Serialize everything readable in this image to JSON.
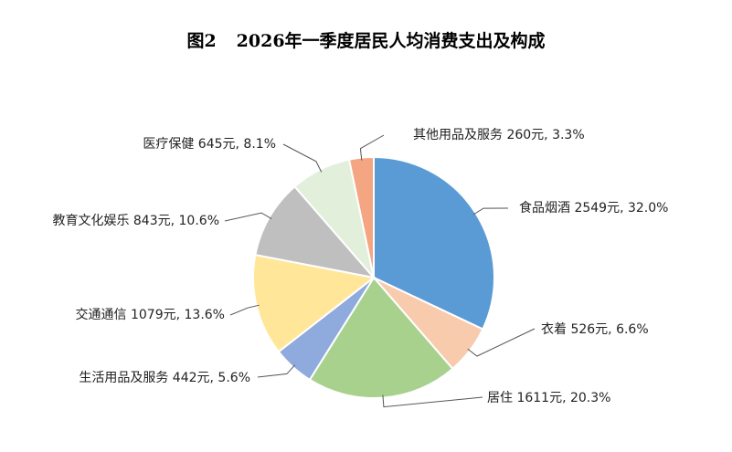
{
  "title": {
    "figure": "图2",
    "text": "2026年一季度居民人均消费支出及构成"
  },
  "chart_data": {
    "type": "pie",
    "title": "2026年一季度居民人均消费支出及构成",
    "unit": "元",
    "slices": [
      {
        "name": "食品烟酒",
        "value": 2549,
        "percent": 32.0,
        "label": "食品烟酒 2549元, 32.0%",
        "color": "#5b9bd5"
      },
      {
        "name": "衣着",
        "value": 526,
        "percent": 6.6,
        "label": "衣着 526元, 6.6%",
        "color": "#f8cbad"
      },
      {
        "name": "居住",
        "value": 1611,
        "percent": 20.3,
        "label": "居住 1611元, 20.3%",
        "color": "#a9d18e"
      },
      {
        "name": "生活用品及服务",
        "value": 442,
        "percent": 5.6,
        "label": "生活用品及服务 442元, 5.6%",
        "color": "#8faadc"
      },
      {
        "name": "交通通信",
        "value": 1079,
        "percent": 13.6,
        "label": "交通通信 1079元, 13.6%",
        "color": "#ffe699"
      },
      {
        "name": "教育文化娱乐",
        "value": 843,
        "percent": 10.6,
        "label": "教育文化娱乐 843元, 10.6%",
        "color": "#bfbfbf"
      },
      {
        "name": "医疗保健",
        "value": 645,
        "percent": 8.1,
        "label": "医疗保健 645元, 8.1%",
        "color": "#e2efda"
      },
      {
        "name": "其他用品及服务",
        "value": 260,
        "percent": 3.3,
        "label": "其他用品及服务 260元, 3.3%",
        "color": "#f4a582"
      }
    ]
  }
}
